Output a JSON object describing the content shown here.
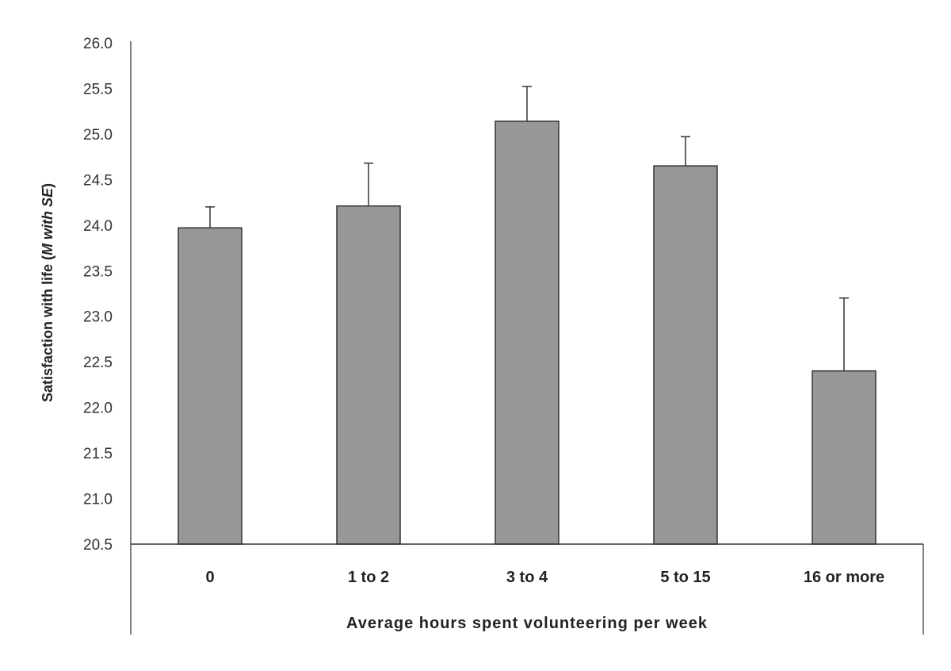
{
  "chart_data": {
    "type": "bar",
    "title": "",
    "xlabel": "Average hours spent volunteering per week",
    "ylabel_prefix": "Satisfaction with life (",
    "ylabel_italic": "M with SE",
    "ylabel_suffix": ")",
    "categories": [
      "0",
      "1 to 2",
      "3 to 4",
      "5 to 15",
      "16 or more"
    ],
    "values": [
      23.97,
      24.21,
      25.14,
      24.65,
      22.4
    ],
    "error_upper": [
      24.2,
      24.68,
      25.52,
      24.97,
      23.2
    ],
    "ylim": [
      20.5,
      26.0
    ],
    "yticks": [
      "20.5",
      "21.0",
      "21.5",
      "22.0",
      "22.5",
      "23.0",
      "23.5",
      "24.0",
      "24.5",
      "25.0",
      "25.5",
      "26.0"
    ],
    "grid": false,
    "bar_color": "#979797",
    "edge_color": "#333333"
  }
}
